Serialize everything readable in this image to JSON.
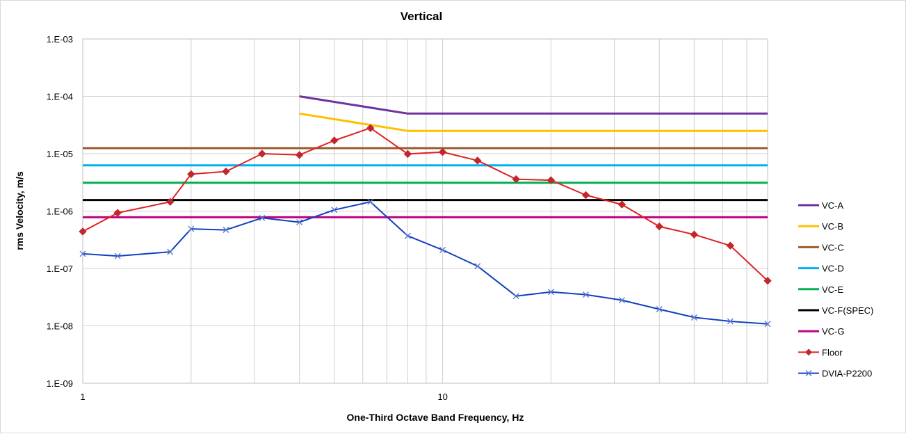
{
  "chart_data": {
    "type": "line",
    "title": "Vertical",
    "xlabel": "One-Third Octave Band Frequency, Hz",
    "ylabel": "rms Velocity, m/s",
    "x_scale": "log",
    "y_scale": "log",
    "xlim": [
      1,
      80
    ],
    "ylim": [
      1e-09,
      0.001
    ],
    "x_tick_labels": [
      "1",
      "10"
    ],
    "y_tick_labels": [
      "1.E-09",
      "1.E-08",
      "1.E-07",
      "1.E-06",
      "1.E-05",
      "1.E-04",
      "1.E-03"
    ],
    "grid": true,
    "legend_position": "right",
    "series": [
      {
        "name": "VC-A",
        "color": "#7030a0",
        "marker": "none",
        "x": [
          4,
          8,
          80
        ],
        "y": [
          0.0001,
          5e-05,
          5e-05
        ]
      },
      {
        "name": "VC-B",
        "color": "#ffc000",
        "marker": "none",
        "x": [
          4,
          8,
          80
        ],
        "y": [
          5e-05,
          2.5e-05,
          2.5e-05
        ]
      },
      {
        "name": "VC-C",
        "color": "#9c5b2f",
        "marker": "none",
        "x": [
          1,
          80
        ],
        "y": [
          1.25e-05,
          1.25e-05
        ]
      },
      {
        "name": "VC-D",
        "color": "#00b0f0",
        "marker": "none",
        "x": [
          1,
          80
        ],
        "y": [
          6.25e-06,
          6.25e-06
        ]
      },
      {
        "name": "VC-E",
        "color": "#00b050",
        "marker": "none",
        "x": [
          1,
          80
        ],
        "y": [
          3.12e-06,
          3.12e-06
        ]
      },
      {
        "name": "VC-F(SPEC)",
        "color": "#000000",
        "marker": "none",
        "x": [
          1,
          80
        ],
        "y": [
          1.56e-06,
          1.56e-06
        ]
      },
      {
        "name": "VC-G",
        "color": "#c00080",
        "marker": "none",
        "x": [
          1,
          80
        ],
        "y": [
          7.8e-07,
          7.8e-07
        ]
      },
      {
        "name": "Floor",
        "color": "#e02020",
        "marker": "diamond",
        "x": [
          1,
          1.25,
          1.75,
          2,
          2.5,
          3.15,
          4,
          5,
          6.3,
          8,
          10,
          12.5,
          16,
          20,
          25,
          31.5,
          40,
          50,
          63,
          80
        ],
        "y": [
          4.4e-07,
          9.3e-07,
          1.45e-06,
          4.4e-06,
          4.9e-06,
          1e-05,
          9.5e-06,
          1.7e-05,
          2.8e-05,
          9.9e-06,
          1.07e-05,
          7.6e-06,
          3.6e-06,
          3.45e-06,
          1.9e-06,
          1.3e-06,
          5.4e-07,
          3.9e-07,
          2.5e-07,
          6.1e-08
        ]
      },
      {
        "name": "DVIA-P2200",
        "color": "#1040c0",
        "marker": "x",
        "x": [
          1,
          1.25,
          1.75,
          2,
          2.5,
          3.15,
          4,
          5,
          6.3,
          8,
          10,
          12.5,
          16,
          20,
          25,
          31.5,
          40,
          50,
          63,
          80
        ],
        "y": [
          1.8e-07,
          1.65e-07,
          1.95e-07,
          4.9e-07,
          4.7e-07,
          7.6e-07,
          6.4e-07,
          1.05e-06,
          1.45e-06,
          3.7e-07,
          2.1e-07,
          1.1e-07,
          3.3e-08,
          3.9e-08,
          3.5e-08,
          2.8e-08,
          1.95e-08,
          1.4e-08,
          1.2e-08,
          1.08e-08
        ]
      }
    ]
  }
}
